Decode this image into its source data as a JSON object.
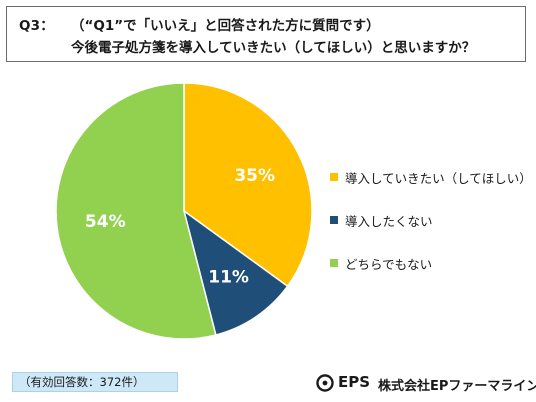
{
  "title": {
    "question_no": "Q3：",
    "line1": "（“Q1”で「いいえ」と回答された方に質問です）",
    "line2": "今後電子処方箋を導入していきたい（してほしい）と思いますか？"
  },
  "chart_data": {
    "type": "pie",
    "categories": [
      "導入していきたい（してほしい）",
      "導入したくない",
      "どちらでもない"
    ],
    "values": [
      35,
      11,
      54
    ],
    "data_labels": [
      "35%",
      "11%",
      "54%"
    ],
    "colors": [
      "#FFC000",
      "#1F4E79",
      "#92D050"
    ],
    "legend_position": "right"
  },
  "note": "（有効回答数：372件）",
  "brand": {
    "eps": "EPS",
    "company": "株式会社EPファーマライン",
    "logo_icon": "eps-swirl-logo-icon"
  }
}
